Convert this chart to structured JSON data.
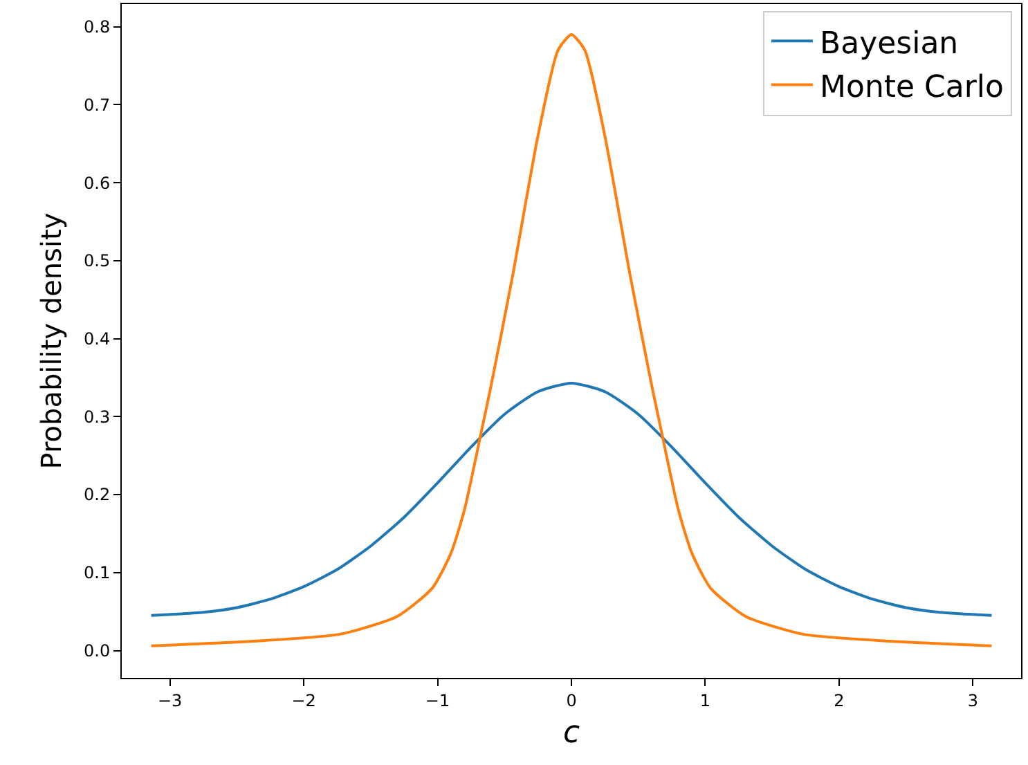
{
  "chart_data": {
    "type": "line",
    "xlabel": "c",
    "ylabel": "Probability density",
    "xlim": [
      -3.36,
      3.36
    ],
    "ylim": [
      -0.035,
      0.829
    ],
    "xticks": [
      {
        "value": -3,
        "label": "−3"
      },
      {
        "value": -2,
        "label": "−2"
      },
      {
        "value": -1,
        "label": "−1"
      },
      0,
      1,
      2,
      3
    ],
    "yticks": [
      {
        "value": 0,
        "label": "0.0"
      },
      0.1,
      0.2,
      0.3,
      0.4,
      0.5,
      0.6,
      0.7,
      0.8
    ],
    "grid": false,
    "legend": "top right",
    "marker": "none",
    "line_style": "solid",
    "series": [
      {
        "name": "Bayesian",
        "color": "#1f77b4",
        "x": [
          -3.14,
          -2.75,
          -2.5,
          -2.25,
          -2,
          -1.75,
          -1.5,
          -1.25,
          -1,
          -0.75,
          -0.5,
          -0.25,
          0,
          0.25,
          0.5,
          0.75,
          1,
          1.25,
          1.5,
          1.75,
          2,
          2.25,
          2.5,
          2.75,
          3.14
        ],
        "values": [
          0.045,
          0.049,
          0.055,
          0.066,
          0.082,
          0.104,
          0.134,
          0.171,
          0.215,
          0.261,
          0.303,
          0.332,
          0.343,
          0.332,
          0.303,
          0.261,
          0.215,
          0.171,
          0.134,
          0.104,
          0.082,
          0.066,
          0.055,
          0.049,
          0.045
        ]
      },
      {
        "name": "Monte Carlo",
        "color": "#ff7f0e",
        "x": [
          -3.14,
          -2.38,
          -1.73,
          -1.3,
          -1.04,
          -0.9,
          -0.8,
          -0.68,
          -0.6,
          -0.44,
          -0.25,
          -0.1,
          0,
          0.1,
          0.25,
          0.44,
          0.6,
          0.68,
          0.8,
          0.9,
          1.04,
          1.3,
          1.73,
          2.38,
          3.14
        ],
        "values": [
          0.006,
          0.012,
          0.021,
          0.044,
          0.08,
          0.125,
          0.18,
          0.275,
          0.34,
          0.48,
          0.66,
          0.77,
          0.79,
          0.77,
          0.66,
          0.48,
          0.34,
          0.275,
          0.18,
          0.125,
          0.08,
          0.044,
          0.021,
          0.012,
          0.006
        ]
      }
    ]
  }
}
